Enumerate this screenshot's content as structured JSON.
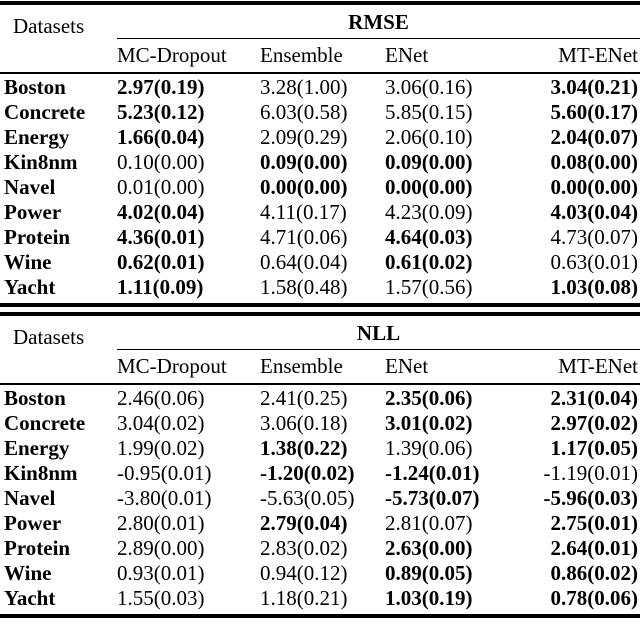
{
  "page": {
    "background": "#ffffff",
    "text_color": "#000000"
  },
  "tables": [
    {
      "metric_label": "RMSE",
      "datasets_header": "Datasets",
      "method_columns": [
        "MC-Dropout",
        "Ensemble",
        "ENet",
        "MT-ENet"
      ],
      "rows": [
        {
          "dataset": "Boston",
          "values": [
            {
              "text": "2.97(0.19)",
              "bold": true
            },
            {
              "text": "3.28(1.00)",
              "bold": false
            },
            {
              "text": "3.06(0.16)",
              "bold": false
            },
            {
              "text": "3.04(0.21)",
              "bold": true
            }
          ]
        },
        {
          "dataset": "Concrete",
          "values": [
            {
              "text": "5.23(0.12)",
              "bold": true
            },
            {
              "text": "6.03(0.58)",
              "bold": false
            },
            {
              "text": "5.85(0.15)",
              "bold": false
            },
            {
              "text": "5.60(0.17)",
              "bold": true
            }
          ]
        },
        {
          "dataset": "Energy",
          "values": [
            {
              "text": "1.66(0.04)",
              "bold": true
            },
            {
              "text": "2.09(0.29)",
              "bold": false
            },
            {
              "text": "2.06(0.10)",
              "bold": false
            },
            {
              "text": "2.04(0.07)",
              "bold": true
            }
          ]
        },
        {
          "dataset": "Kin8nm",
          "values": [
            {
              "text": "0.10(0.00)",
              "bold": false
            },
            {
              "text": "0.09(0.00)",
              "bold": true
            },
            {
              "text": "0.09(0.00)",
              "bold": true
            },
            {
              "text": "0.08(0.00)",
              "bold": true
            }
          ]
        },
        {
          "dataset": "Navel",
          "values": [
            {
              "text": "0.01(0.00)",
              "bold": false
            },
            {
              "text": "0.00(0.00)",
              "bold": true
            },
            {
              "text": "0.00(0.00)",
              "bold": true
            },
            {
              "text": "0.00(0.00)",
              "bold": true
            }
          ]
        },
        {
          "dataset": "Power",
          "values": [
            {
              "text": "4.02(0.04)",
              "bold": true
            },
            {
              "text": "4.11(0.17)",
              "bold": false
            },
            {
              "text": "4.23(0.09)",
              "bold": false
            },
            {
              "text": "4.03(0.04)",
              "bold": true
            }
          ]
        },
        {
          "dataset": "Protein",
          "values": [
            {
              "text": "4.36(0.01)",
              "bold": true
            },
            {
              "text": "4.71(0.06)",
              "bold": false
            },
            {
              "text": "4.64(0.03)",
              "bold": true
            },
            {
              "text": "4.73(0.07)",
              "bold": false
            }
          ]
        },
        {
          "dataset": "Wine",
          "values": [
            {
              "text": "0.62(0.01)",
              "bold": true
            },
            {
              "text": "0.64(0.04)",
              "bold": false
            },
            {
              "text": "0.61(0.02)",
              "bold": true
            },
            {
              "text": "0.63(0.01)",
              "bold": false
            }
          ]
        },
        {
          "dataset": "Yacht",
          "values": [
            {
              "text": "1.11(0.09)",
              "bold": true
            },
            {
              "text": "1.58(0.48)",
              "bold": false
            },
            {
              "text": "1.57(0.56)",
              "bold": false
            },
            {
              "text": "1.03(0.08)",
              "bold": true
            }
          ]
        }
      ]
    },
    {
      "metric_label": "NLL",
      "datasets_header": "Datasets",
      "method_columns": [
        "MC-Dropout",
        "Ensemble",
        "ENet",
        "MT-ENet"
      ],
      "rows": [
        {
          "dataset": "Boston",
          "values": [
            {
              "text": "2.46(0.06)",
              "bold": false
            },
            {
              "text": "2.41(0.25)",
              "bold": false
            },
            {
              "text": "2.35(0.06)",
              "bold": true
            },
            {
              "text": "2.31(0.04)",
              "bold": true
            }
          ]
        },
        {
          "dataset": "Concrete",
          "values": [
            {
              "text": "3.04(0.02)",
              "bold": false
            },
            {
              "text": "3.06(0.18)",
              "bold": false
            },
            {
              "text": "3.01(0.02)",
              "bold": true
            },
            {
              "text": "2.97(0.02)",
              "bold": true
            }
          ]
        },
        {
          "dataset": "Energy",
          "values": [
            {
              "text": "1.99(0.02)",
              "bold": false
            },
            {
              "text": "1.38(0.22)",
              "bold": true
            },
            {
              "text": "1.39(0.06)",
              "bold": false
            },
            {
              "text": "1.17(0.05)",
              "bold": true
            }
          ]
        },
        {
          "dataset": "Kin8nm",
          "values": [
            {
              "text": "-0.95(0.01)",
              "bold": false
            },
            {
              "text": "-1.20(0.02)",
              "bold": true
            },
            {
              "text": "-1.24(0.01)",
              "bold": true
            },
            {
              "text": "-1.19(0.01)",
              "bold": false
            }
          ]
        },
        {
          "dataset": "Navel",
          "values": [
            {
              "text": "-3.80(0.01)",
              "bold": false
            },
            {
              "text": "-5.63(0.05)",
              "bold": false
            },
            {
              "text": "-5.73(0.07)",
              "bold": true
            },
            {
              "text": "-5.96(0.03)",
              "bold": true
            }
          ]
        },
        {
          "dataset": "Power",
          "values": [
            {
              "text": "2.80(0.01)",
              "bold": false
            },
            {
              "text": "2.79(0.04)",
              "bold": true
            },
            {
              "text": "2.81(0.07)",
              "bold": false
            },
            {
              "text": "2.75(0.01)",
              "bold": true
            }
          ]
        },
        {
          "dataset": "Protein",
          "values": [
            {
              "text": "2.89(0.00)",
              "bold": false
            },
            {
              "text": "2.83(0.02)",
              "bold": false
            },
            {
              "text": "2.63(0.00)",
              "bold": true
            },
            {
              "text": "2.64(0.01)",
              "bold": true
            }
          ]
        },
        {
          "dataset": "Wine",
          "values": [
            {
              "text": "0.93(0.01)",
              "bold": false
            },
            {
              "text": "0.94(0.12)",
              "bold": false
            },
            {
              "text": "0.89(0.05)",
              "bold": true
            },
            {
              "text": "0.86(0.02)",
              "bold": true
            }
          ]
        },
        {
          "dataset": "Yacht",
          "values": [
            {
              "text": "1.55(0.03)",
              "bold": false
            },
            {
              "text": "1.18(0.21)",
              "bold": false
            },
            {
              "text": "1.03(0.19)",
              "bold": true
            },
            {
              "text": "0.78(0.06)",
              "bold": true
            }
          ]
        }
      ]
    }
  ]
}
